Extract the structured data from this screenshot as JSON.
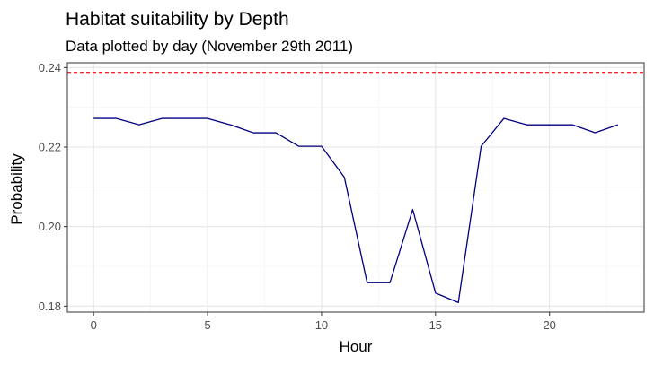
{
  "chart_data": {
    "type": "line",
    "title": "Habitat suitability by Depth",
    "subtitle": "Data plotted by day (November 29th 2011)",
    "xlabel": "Hour",
    "ylabel": "Probability",
    "xlim": [
      -1.15,
      24.15
    ],
    "ylim": [
      0.1785,
      0.2412
    ],
    "x_ticks": [
      0,
      5,
      10,
      15,
      20
    ],
    "x_tick_labels": [
      "0",
      "5",
      "10",
      "15",
      "20"
    ],
    "y_ticks": [
      0.18,
      0.2,
      0.22,
      0.24
    ],
    "y_tick_labels": [
      "0.18",
      "0.20",
      "0.22",
      "0.24"
    ],
    "grid": true,
    "series": [
      {
        "color": "#000080",
        "x": [
          0,
          1,
          2,
          3,
          4,
          5,
          6,
          7,
          8,
          9,
          10,
          11,
          12,
          13,
          14,
          15,
          16,
          17,
          18,
          19,
          20,
          21,
          22,
          23
        ],
        "values": [
          0.2272,
          0.2272,
          0.2256,
          0.2272,
          0.2272,
          0.2272,
          0.2256,
          0.2236,
          0.2236,
          0.2202,
          0.2202,
          0.2124,
          0.1859,
          0.1859,
          0.2043,
          0.1833,
          0.1809,
          0.2202,
          0.2272,
          0.2256,
          0.2256,
          0.2256,
          0.2236,
          0.2256
        ]
      }
    ],
    "reference_line": {
      "y": 0.2388,
      "color": "#ff0000",
      "style": "dashed"
    }
  }
}
